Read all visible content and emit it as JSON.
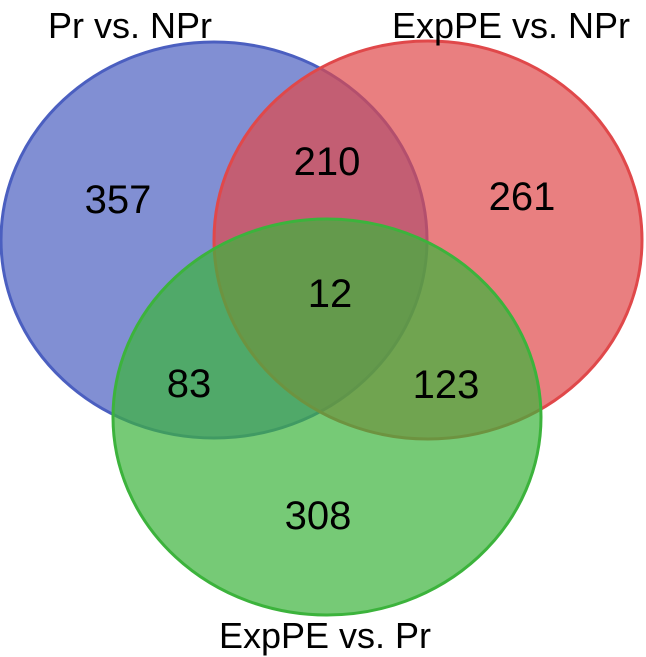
{
  "venn": {
    "sets": [
      {
        "id": "A",
        "label": "Pr vs. NPr",
        "color": "#4b5fc0"
      },
      {
        "id": "B",
        "label": "ExpPE vs. NPr",
        "color": "#e0484a"
      },
      {
        "id": "C",
        "label": "ExpPE vs. Pr",
        "color": "#3cb33c"
      }
    ],
    "regions": {
      "A_only": "357",
      "B_only": "261",
      "C_only": "308",
      "A_B": "210",
      "A_C": "83",
      "B_C": "123",
      "A_B_C": "12"
    }
  }
}
